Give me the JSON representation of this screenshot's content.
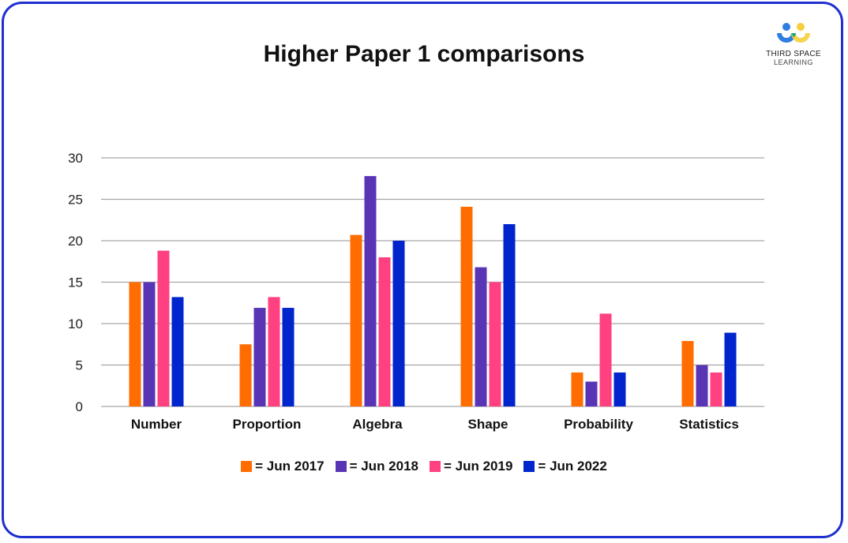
{
  "logo": {
    "line1": "THIRD SPACE",
    "line2": "LEARNING"
  },
  "chart_data": {
    "type": "bar",
    "title": "Higher Paper 1 comparisons",
    "xlabel": "",
    "ylabel": "",
    "ylim": [
      0,
      30
    ],
    "yticks": [
      0,
      5,
      10,
      15,
      20,
      25,
      30
    ],
    "grid": true,
    "legend_position": "bottom",
    "categories": [
      "Number",
      "Proportion",
      "Algebra",
      "Shape",
      "Probability",
      "Statistics"
    ],
    "series": [
      {
        "name": "= Jun 2017",
        "color": "#ff6d00",
        "values": [
          15,
          7.5,
          20.7,
          24.1,
          4.1,
          7.9
        ]
      },
      {
        "name": "= Jun 2018",
        "color": "#5835b5",
        "values": [
          15,
          11.9,
          27.8,
          16.8,
          3.0,
          5.0
        ]
      },
      {
        "name": "= Jun 2019",
        "color": "#ff4081",
        "values": [
          18.8,
          13.2,
          18.0,
          15.0,
          11.2,
          4.1
        ]
      },
      {
        "name": "= Jun 2022",
        "color": "#0125cc",
        "values": [
          13.2,
          11.9,
          20.0,
          22.0,
          4.1,
          8.9
        ]
      }
    ]
  }
}
